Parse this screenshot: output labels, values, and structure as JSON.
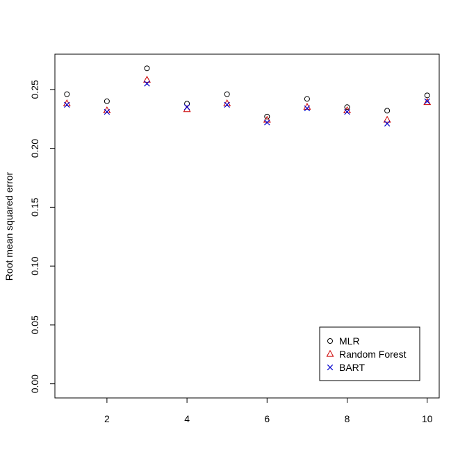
{
  "chart_data": {
    "type": "scatter",
    "title": "",
    "xlabel": "",
    "ylabel": "Root mean squared error",
    "xlim": [
      0.7,
      10.3
    ],
    "ylim": [
      -0.012,
      0.28
    ],
    "x_ticks": [
      2,
      4,
      6,
      8,
      10
    ],
    "y_ticks": [
      0.0,
      0.05,
      0.1,
      0.15,
      0.2,
      0.25
    ],
    "x_tick_labels": [
      "2",
      "4",
      "6",
      "8",
      "10"
    ],
    "y_tick_labels": [
      "0.00",
      "0.05",
      "0.10",
      "0.15",
      "0.20",
      "0.25"
    ],
    "grid": false,
    "legend_position": "bottom-right",
    "x": [
      1,
      2,
      3,
      4,
      5,
      6,
      7,
      8,
      9,
      10
    ],
    "series": [
      {
        "name": "MLR",
        "marker": "circle",
        "color": "#000000",
        "values": [
          0.246,
          0.24,
          0.268,
          0.238,
          0.246,
          0.227,
          0.242,
          0.235,
          0.232,
          0.245
        ]
      },
      {
        "name": "Random Forest",
        "marker": "triangle",
        "color": "#cc0000",
        "values": [
          0.238,
          0.232,
          0.258,
          0.233,
          0.238,
          0.224,
          0.235,
          0.232,
          0.224,
          0.239
        ]
      },
      {
        "name": "BART",
        "marker": "cross",
        "color": "#0000cc",
        "values": [
          0.237,
          0.231,
          0.255,
          0.235,
          0.237,
          0.222,
          0.234,
          0.231,
          0.221,
          0.24
        ]
      }
    ]
  }
}
